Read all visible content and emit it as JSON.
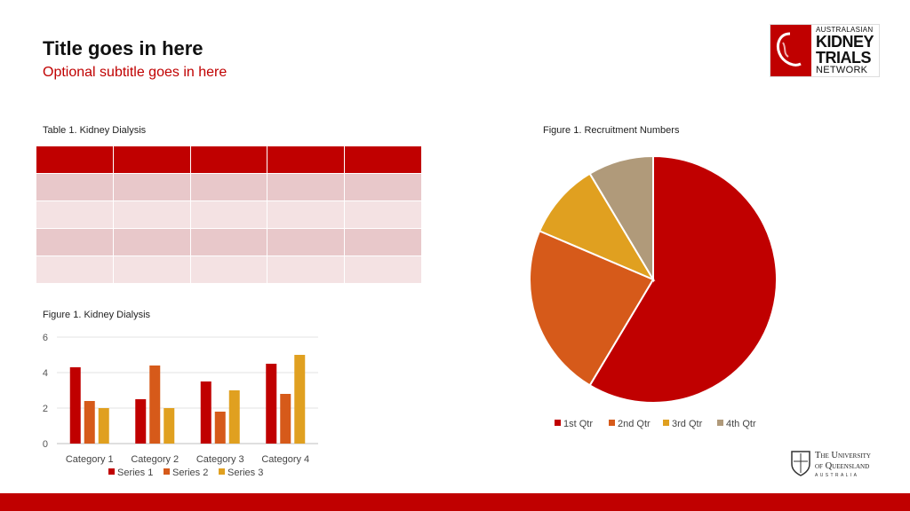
{
  "header": {
    "title": "Title goes in here",
    "subtitle": "Optional subtitle goes in here"
  },
  "logo": {
    "line1": "AUSTRALASIAN",
    "line2": "KIDNEY",
    "line3": "TRIALS",
    "line4": "NETWORK"
  },
  "table": {
    "caption": "Table 1. Kidney Dialysis"
  },
  "bar_figure": {
    "caption": "Figure 1. Kidney Dialysis"
  },
  "pie_figure": {
    "caption": "Figure 1. Recruitment Numbers"
  },
  "university": {
    "line1": "The University",
    "line2": "of Queensland",
    "line3": "AUSTRALIA"
  },
  "colors": {
    "brand_red": "#c00000",
    "orange": "#d65a1a",
    "gold": "#e0a020",
    "tan": "#b09a7a"
  },
  "chart_data": [
    {
      "type": "bar",
      "categories": [
        "Category 1",
        "Category 2",
        "Category 3",
        "Category 4"
      ],
      "series": [
        {
          "name": "Series 1",
          "values": [
            4.3,
            2.5,
            3.5,
            4.5
          ],
          "color": "#c00000"
        },
        {
          "name": "Series 2",
          "values": [
            2.4,
            4.4,
            1.8,
            2.8
          ],
          "color": "#d65a1a"
        },
        {
          "name": "Series 3",
          "values": [
            2,
            2,
            3,
            5
          ],
          "color": "#e0a020"
        }
      ],
      "yticks": [
        "0",
        "2",
        "4",
        "6"
      ],
      "ylim": [
        0,
        6
      ],
      "grid": true,
      "legend": "bottom"
    },
    {
      "type": "pie",
      "labels": [
        "1st Qtr",
        "2nd Qtr",
        "3rd Qtr",
        "4th Qtr"
      ],
      "values": [
        8.2,
        3.2,
        1.4,
        1.2
      ],
      "colors": [
        "#c00000",
        "#d65a1a",
        "#e0a020",
        "#b09a7a"
      ],
      "legend": "bottom"
    }
  ]
}
